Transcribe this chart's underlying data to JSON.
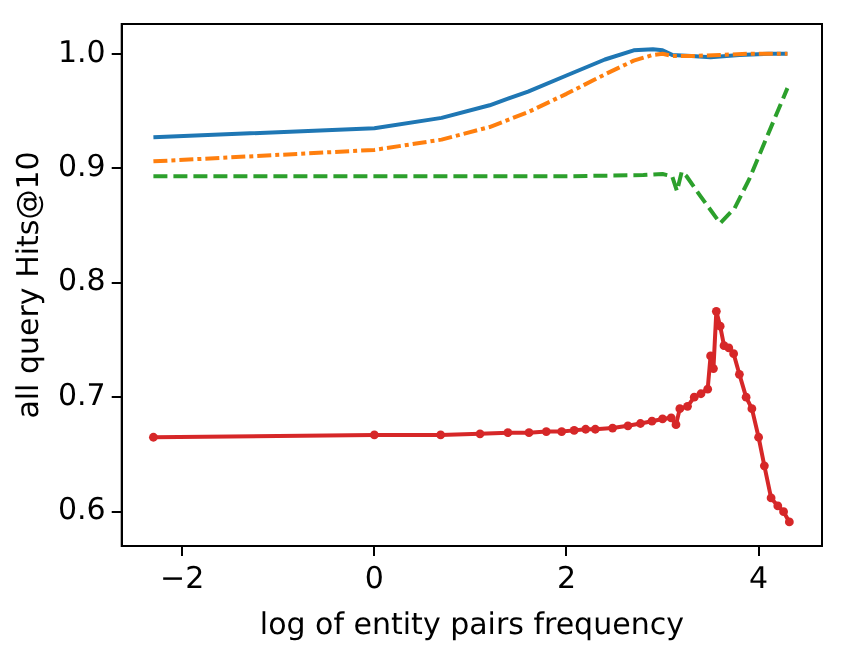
{
  "chart_data": {
    "type": "line",
    "xlabel": "log of entity pairs frequency",
    "ylabel": "all query Hits@10",
    "xlim": [
      -2.63,
      4.66
    ],
    "ylim": [
      0.57,
      1.026
    ],
    "xticks": [
      {
        "value": -2,
        "label": "−2"
      },
      0,
      2,
      4
    ],
    "yticks": [
      0.6,
      0.7,
      0.8,
      0.9,
      {
        "value": 1,
        "label": "1.0"
      }
    ],
    "grid": false,
    "legend": false,
    "series": [
      {
        "color": "#1f77b4",
        "line_style": "solid",
        "marker": "none",
        "x": [
          -2.3,
          0,
          0.7,
          1.2,
          1.6,
          2.0,
          2.4,
          2.7,
          2.9,
          3.0,
          3.1,
          3.3,
          3.5,
          3.8,
          4.1,
          4.3
        ],
        "values": [
          0.927,
          0.935,
          0.944,
          0.955,
          0.967,
          0.981,
          0.995,
          1.003,
          1.004,
          1.003,
          0.999,
          0.998,
          0.997,
          0.999,
          1.0,
          1.0
        ]
      },
      {
        "color": "#ff7f0e",
        "line_style": "dashdot",
        "marker": "none",
        "x": [
          -2.3,
          0,
          0.7,
          1.2,
          1.6,
          2.0,
          2.4,
          2.7,
          2.9,
          3.0,
          3.1,
          3.3,
          3.6,
          3.9,
          4.3
        ],
        "values": [
          0.906,
          0.916,
          0.925,
          0.936,
          0.949,
          0.965,
          0.982,
          0.994,
          0.999,
          1.0,
          0.998,
          0.998,
          0.999,
          1.0,
          1.0
        ]
      },
      {
        "color": "#2ca02c",
        "line_style": "dashed",
        "marker": "none",
        "x": [
          -2.3,
          0,
          1.0,
          2.0,
          2.8,
          3.0,
          3.1,
          3.15,
          3.2,
          3.25,
          3.4,
          3.6,
          3.75,
          3.9,
          4.1,
          4.3
        ],
        "values": [
          0.893,
          0.893,
          0.893,
          0.893,
          0.894,
          0.895,
          0.893,
          0.88,
          0.897,
          0.893,
          0.875,
          0.852,
          0.865,
          0.89,
          0.93,
          0.97
        ]
      },
      {
        "color": "#d62728",
        "line_style": "solid",
        "marker": "circle",
        "x": [
          -2.3,
          0,
          0.69,
          1.1,
          1.39,
          1.61,
          1.79,
          1.95,
          2.08,
          2.2,
          2.3,
          2.48,
          2.64,
          2.77,
          2.89,
          3.0,
          3.09,
          3.14,
          3.18,
          3.26,
          3.33,
          3.4,
          3.47,
          3.5,
          3.53,
          3.56,
          3.6,
          3.64,
          3.69,
          3.74,
          3.8,
          3.87,
          3.93,
          4.0,
          4.06,
          4.13,
          4.2,
          4.26,
          4.32
        ],
        "values": [
          0.665,
          0.667,
          0.667,
          0.668,
          0.669,
          0.669,
          0.67,
          0.67,
          0.671,
          0.672,
          0.672,
          0.673,
          0.675,
          0.677,
          0.679,
          0.681,
          0.682,
          0.676,
          0.69,
          0.692,
          0.7,
          0.703,
          0.707,
          0.736,
          0.725,
          0.775,
          0.762,
          0.745,
          0.743,
          0.738,
          0.72,
          0.7,
          0.69,
          0.665,
          0.64,
          0.612,
          0.605,
          0.6,
          0.591
        ]
      }
    ]
  }
}
